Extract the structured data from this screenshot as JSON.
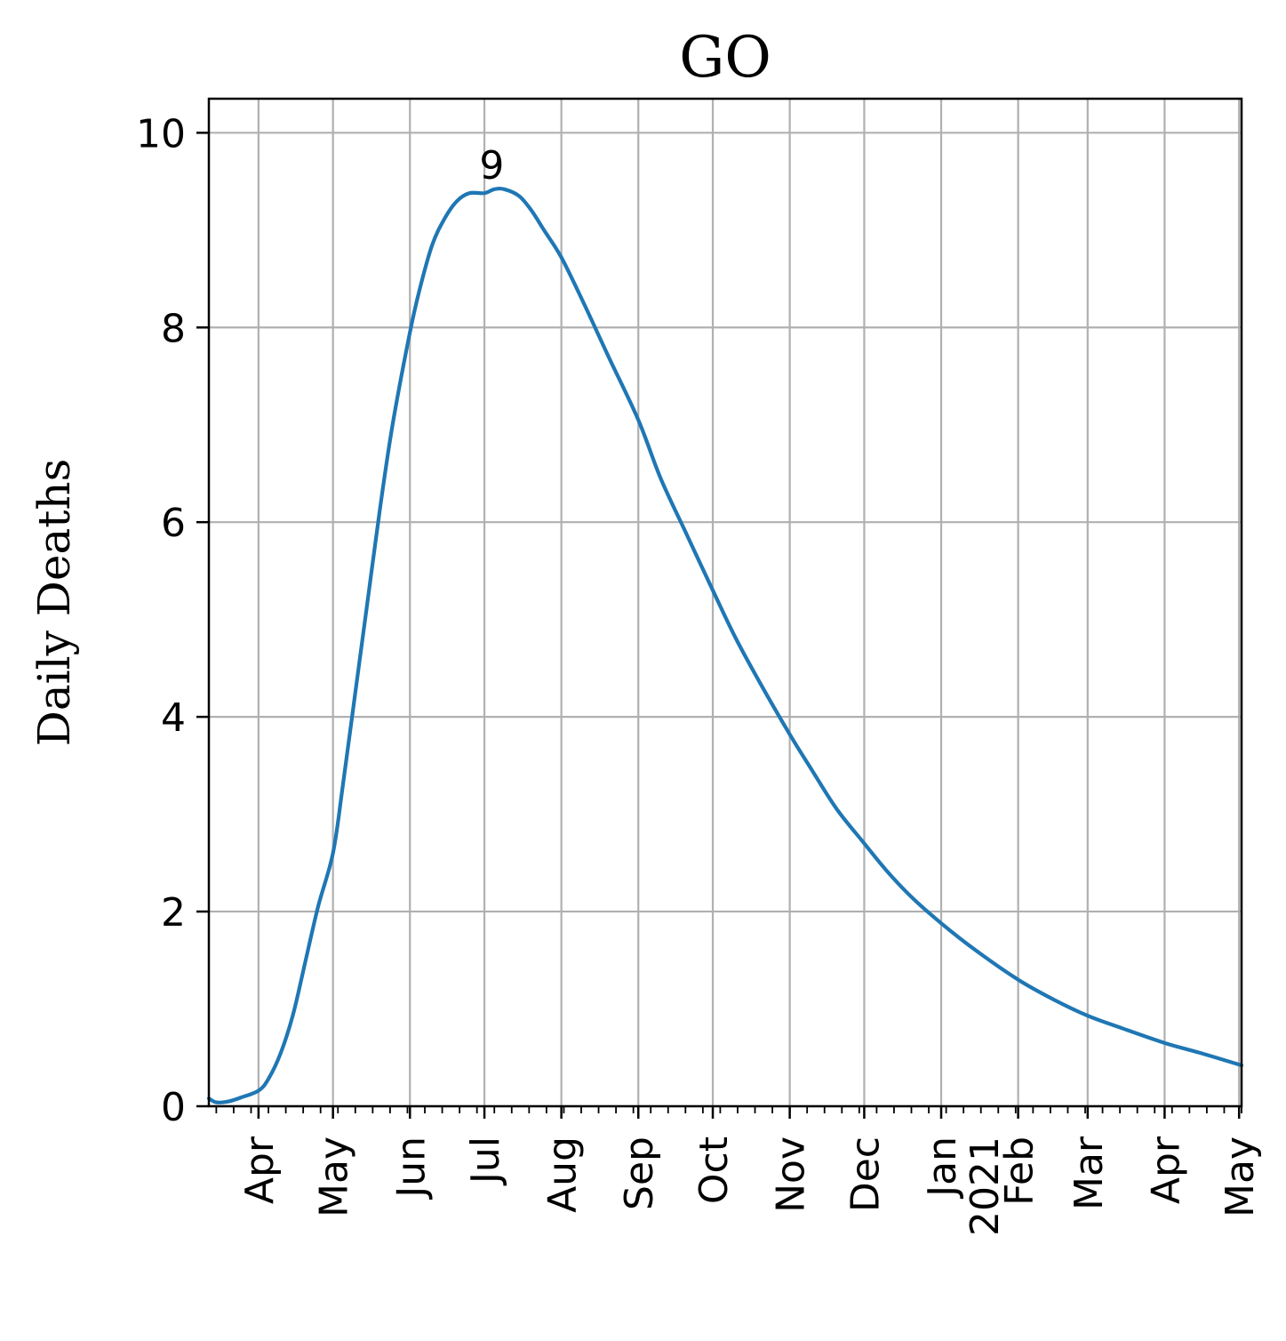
{
  "chart_data": {
    "type": "line",
    "title": "GO",
    "xlabel": "",
    "ylabel": "Daily Deaths",
    "xlim": [
      "2020-03-12",
      "2021-05-02"
    ],
    "ylim": [
      0,
      10.35
    ],
    "yticks": [
      0,
      2,
      4,
      6,
      8,
      10
    ],
    "xticks": [
      {
        "date": "2020-04-01",
        "label": "Apr"
      },
      {
        "date": "2020-05-01",
        "label": "May"
      },
      {
        "date": "2020-06-01",
        "label": "Jun"
      },
      {
        "date": "2020-07-01",
        "label": "Jul"
      },
      {
        "date": "2020-08-01",
        "label": "Aug"
      },
      {
        "date": "2020-09-01",
        "label": "Sep"
      },
      {
        "date": "2020-10-01",
        "label": "Oct"
      },
      {
        "date": "2020-11-01",
        "label": "Nov"
      },
      {
        "date": "2020-12-01",
        "label": "Dec"
      },
      {
        "date": "2021-01-01",
        "label": "Jan\n2021"
      },
      {
        "date": "2021-02-01",
        "label": "Feb"
      },
      {
        "date": "2021-03-01",
        "label": "Mar"
      },
      {
        "date": "2021-04-01",
        "label": "Apr"
      },
      {
        "date": "2021-05-01",
        "label": "May"
      }
    ],
    "grid": true,
    "color": "#1f77b4",
    "annotation": {
      "text": "9",
      "x": "2020-07-09",
      "y": 9.42
    },
    "series": [
      {
        "x": [
          "2020-03-12",
          "2020-03-15",
          "2020-03-20",
          "2020-03-25",
          "2020-04-01",
          "2020-04-05",
          "2020-04-10",
          "2020-04-15",
          "2020-04-20",
          "2020-04-25",
          "2020-05-01",
          "2020-05-05",
          "2020-05-10",
          "2020-05-15",
          "2020-05-20",
          "2020-05-25",
          "2020-06-01",
          "2020-06-05",
          "2020-06-10",
          "2020-06-15",
          "2020-06-20",
          "2020-06-25",
          "2020-07-01",
          "2020-07-05",
          "2020-07-09",
          "2020-07-15",
          "2020-07-20",
          "2020-07-25",
          "2020-08-01",
          "2020-08-10",
          "2020-08-20",
          "2020-09-01",
          "2020-09-10",
          "2020-09-20",
          "2020-10-01",
          "2020-10-10",
          "2020-10-20",
          "2020-11-01",
          "2020-11-10",
          "2020-11-20",
          "2020-12-01",
          "2020-12-10",
          "2020-12-20",
          "2021-01-01",
          "2021-01-15",
          "2021-02-01",
          "2021-02-15",
          "2021-03-01",
          "2021-03-15",
          "2021-04-01",
          "2021-04-15",
          "2021-05-02"
        ],
        "y": [
          0.08,
          0.04,
          0.05,
          0.09,
          0.16,
          0.28,
          0.55,
          0.95,
          1.5,
          2.05,
          2.6,
          3.3,
          4.25,
          5.2,
          6.15,
          7.0,
          7.95,
          8.4,
          8.85,
          9.12,
          9.3,
          9.38,
          9.38,
          9.42,
          9.42,
          9.35,
          9.2,
          9.0,
          8.72,
          8.25,
          7.7,
          7.05,
          6.45,
          5.9,
          5.3,
          4.82,
          4.35,
          3.82,
          3.45,
          3.05,
          2.7,
          2.42,
          2.15,
          1.88,
          1.6,
          1.3,
          1.1,
          0.93,
          0.8,
          0.65,
          0.55,
          0.42
        ]
      }
    ]
  }
}
